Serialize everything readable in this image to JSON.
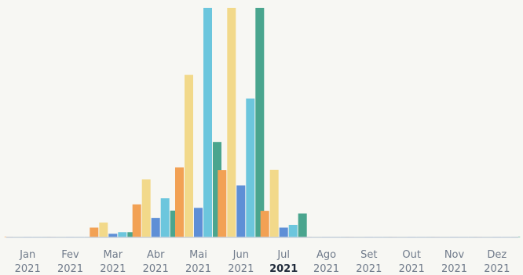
{
  "chart_data": {
    "type": "bar",
    "categories": [
      {
        "month": "Jan",
        "year": "2021"
      },
      {
        "month": "Fev",
        "year": "2021"
      },
      {
        "month": "Mar",
        "year": "2021"
      },
      {
        "month": "Abr",
        "year": "2021"
      },
      {
        "month": "Mai",
        "year": "2021"
      },
      {
        "month": "Jun",
        "year": "2021"
      },
      {
        "month": "Jul",
        "year": "2021"
      },
      {
        "month": "Ago",
        "year": "2021"
      },
      {
        "month": "Set",
        "year": "2021"
      },
      {
        "month": "Out",
        "year": "2021"
      },
      {
        "month": "Nov",
        "year": "2021"
      },
      {
        "month": "Dez",
        "year": "2021"
      }
    ],
    "current_category_index": 6,
    "series": [
      {
        "color": "#f2a154",
        "values": [
          0.2,
          0.2,
          4.3,
          14.5,
          30.8,
          29.6,
          11.7,
          0.2,
          0.2,
          0.2,
          0.2,
          0.2
        ]
      },
      {
        "color": "#f2d98a",
        "values": [
          0.2,
          0.2,
          6.5,
          25.5,
          71.5,
          101.0,
          29.7,
          0.2,
          0.2,
          0.2,
          0.2,
          0.2
        ]
      },
      {
        "color": "#5e8fd6",
        "values": [
          0.2,
          0.2,
          1.6,
          8.6,
          13.0,
          22.9,
          4.3,
          0.2,
          0.2,
          0.2,
          0.2,
          0.2
        ]
      },
      {
        "color": "#6cc6dd",
        "values": [
          0.2,
          0.2,
          2.3,
          17.2,
          101.0,
          61.1,
          5.5,
          0.2,
          0.2,
          0.2,
          0.2,
          0.2
        ]
      },
      {
        "color": "#4aa58e",
        "values": [
          0.2,
          0.2,
          2.3,
          11.8,
          42.0,
          101.0,
          10.5,
          0.2,
          0.2,
          0.2,
          0.2,
          0.2
        ]
      }
    ],
    "ylim": [
      0,
      101
    ],
    "grid": false,
    "legend": "none"
  }
}
